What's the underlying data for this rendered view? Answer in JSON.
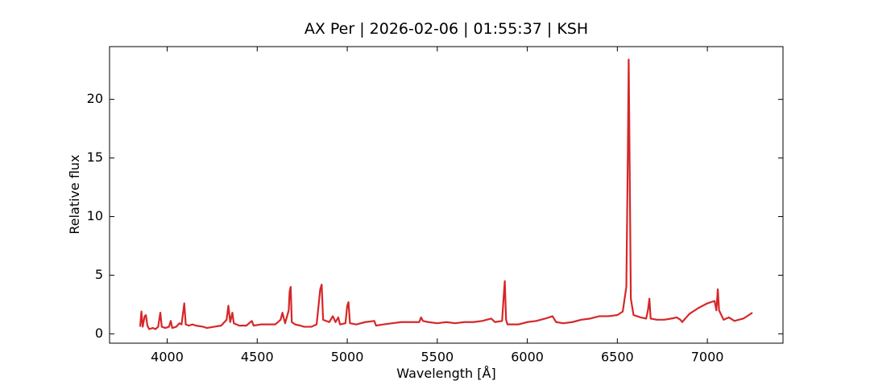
{
  "chart_data": {
    "type": "line",
    "title": "AX Per | 2026-02-06 | 01:55:37 | KSH",
    "x_label": "Wavelength [Å]",
    "y_label": "Relative flux",
    "color": "#d62728",
    "x": [
      3850,
      3857,
      3864,
      3875,
      3882,
      3890,
      3900,
      3920,
      3935,
      3950,
      3962,
      3970,
      3990,
      4010,
      4020,
      4028,
      4050,
      4068,
      4080,
      4095,
      4103,
      4120,
      4140,
      4160,
      4200,
      4220,
      4260,
      4300,
      4330,
      4340,
      4350,
      4362,
      4370,
      4400,
      4440,
      4470,
      4480,
      4520,
      4560,
      4600,
      4630,
      4640,
      4655,
      4675,
      4680,
      4686,
      4692,
      4710,
      4740,
      4760,
      4800,
      4830,
      4850,
      4858,
      4866,
      4900,
      4920,
      4935,
      4950,
      4960,
      4990,
      5000,
      5007,
      5015,
      5050,
      5100,
      5150,
      5160,
      5200,
      5250,
      5300,
      5350,
      5400,
      5410,
      5420,
      5450,
      5500,
      5550,
      5600,
      5650,
      5700,
      5750,
      5800,
      5820,
      5860,
      5868,
      5875,
      5882,
      5890,
      5950,
      6000,
      6050,
      6100,
      6140,
      6160,
      6200,
      6250,
      6300,
      6350,
      6400,
      6450,
      6500,
      6530,
      6550,
      6558,
      6563,
      6568,
      6575,
      6590,
      6630,
      6660,
      6670,
      6678,
      6685,
      6720,
      6760,
      6800,
      6830,
      6850,
      6860,
      6900,
      6950,
      7000,
      7040,
      7050,
      7058,
      7065,
      7090,
      7120,
      7150,
      7200,
      7230,
      7250
    ],
    "values": [
      0.6,
      1.9,
      0.6,
      1.5,
      1.6,
      0.7,
      0.4,
      0.5,
      0.4,
      0.6,
      1.8,
      0.6,
      0.5,
      0.6,
      1.1,
      0.5,
      0.6,
      0.9,
      0.8,
      2.6,
      0.8,
      0.7,
      0.8,
      0.7,
      0.6,
      0.5,
      0.6,
      0.7,
      1.2,
      2.4,
      1.0,
      1.8,
      0.9,
      0.7,
      0.7,
      1.1,
      0.7,
      0.8,
      0.8,
      0.8,
      1.2,
      1.8,
      0.9,
      2.0,
      3.6,
      4.0,
      1.0,
      0.8,
      0.7,
      0.6,
      0.6,
      0.8,
      3.8,
      4.2,
      1.2,
      1.0,
      1.5,
      1.0,
      1.4,
      0.8,
      0.9,
      2.4,
      2.7,
      0.9,
      0.8,
      1.0,
      1.1,
      0.7,
      0.8,
      0.9,
      1.0,
      1.0,
      1.0,
      1.4,
      1.1,
      1.0,
      0.9,
      1.0,
      0.9,
      1.0,
      1.0,
      1.1,
      1.3,
      1.0,
      1.1,
      3.0,
      4.5,
      1.2,
      0.8,
      0.8,
      1.0,
      1.1,
      1.3,
      1.5,
      1.0,
      0.9,
      1.0,
      1.2,
      1.3,
      1.5,
      1.5,
      1.6,
      1.9,
      4.0,
      15,
      23.4,
      15,
      3.0,
      1.6,
      1.4,
      1.3,
      2.0,
      3.0,
      1.3,
      1.2,
      1.2,
      1.3,
      1.4,
      1.2,
      1.0,
      1.7,
      2.2,
      2.6,
      2.8,
      2.0,
      3.8,
      2.0,
      1.2,
      1.4,
      1.1,
      1.3,
      1.6,
      1.8
    ],
    "xlim": [
      3680,
      7420
    ],
    "xticks": [
      4000,
      4500,
      5000,
      5500,
      6000,
      6500,
      7000
    ],
    "ylim": [
      -0.8,
      24.5
    ],
    "yticks": [
      0,
      5,
      10,
      15,
      20
    ],
    "grid": false
  }
}
